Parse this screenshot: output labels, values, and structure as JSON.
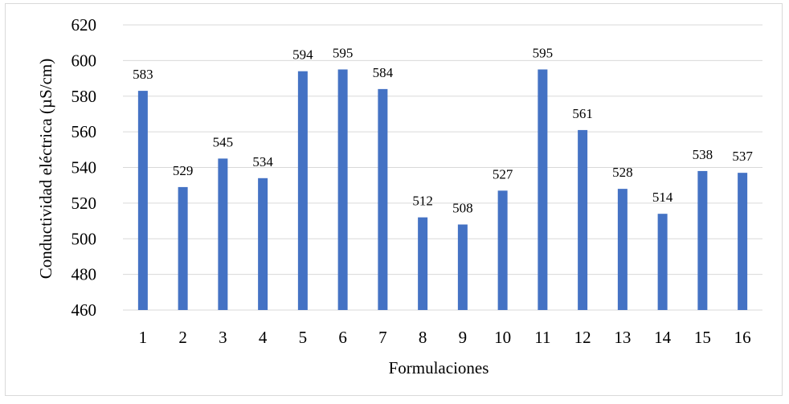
{
  "chart_data": {
    "type": "bar",
    "title": "",
    "xlabel": "Formulaciones",
    "ylabel": "Conductividad eléctrica (µS/cm)",
    "categories": [
      "1",
      "2",
      "3",
      "4",
      "5",
      "6",
      "7",
      "8",
      "9",
      "10",
      "11",
      "12",
      "13",
      "14",
      "15",
      "16"
    ],
    "values": [
      583,
      529,
      545,
      534,
      594,
      595,
      584,
      512,
      508,
      527,
      595,
      561,
      528,
      514,
      538,
      537
    ],
    "ylim": [
      460,
      620
    ],
    "yticks": [
      460,
      480,
      500,
      520,
      540,
      560,
      580,
      600,
      620
    ],
    "grid": true,
    "legend": "none",
    "bar_color": "#4472c4",
    "grid_color": "#d9d9d9"
  }
}
